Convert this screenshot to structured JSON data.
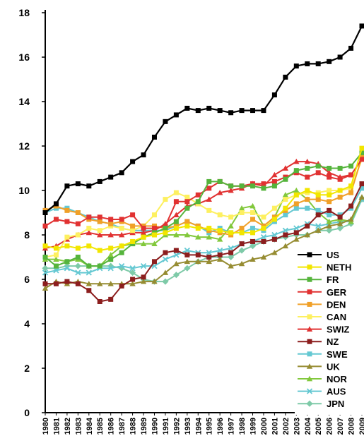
{
  "chart_data": {
    "type": "line",
    "title": "",
    "xlabel": "",
    "ylabel": "",
    "ylim": [
      0,
      18
    ],
    "yticks": [
      0,
      2,
      4,
      6,
      8,
      10,
      12,
      14,
      16,
      18
    ],
    "grid": false,
    "legend_position": "right",
    "categories": [
      "1980",
      "1981",
      "1982",
      "1983",
      "1984",
      "1985",
      "1986",
      "1987",
      "1988",
      "1989",
      "1990",
      "1991",
      "1992",
      "1993",
      "1994",
      "1995",
      "1996",
      "1997",
      "1998",
      "1999",
      "2000",
      "2001",
      "2002",
      "2003",
      "2004",
      "2005",
      "2006",
      "2007",
      "2008",
      "2009"
    ],
    "series": [
      {
        "name": "US",
        "color": "#000000",
        "marker": "square",
        "values": [
          9.0,
          9.4,
          10.2,
          10.3,
          10.2,
          10.4,
          10.6,
          10.8,
          11.3,
          11.6,
          12.4,
          13.1,
          13.4,
          13.7,
          13.6,
          13.7,
          13.6,
          13.5,
          13.6,
          13.6,
          13.6,
          14.3,
          15.1,
          15.6,
          15.7,
          15.7,
          15.8,
          16.0,
          16.4,
          17.4
        ]
      },
      {
        "name": "NETH",
        "color": "#f2e600",
        "marker": "square",
        "values": [
          7.5,
          7.4,
          7.5,
          7.4,
          7.5,
          7.3,
          7.4,
          7.5,
          7.7,
          7.9,
          8.0,
          8.1,
          8.3,
          8.4,
          8.3,
          8.3,
          8.2,
          8.1,
          8.1,
          8.1,
          8.3,
          8.7,
          9.2,
          9.8,
          10.0,
          9.8,
          9.8,
          10.0,
          10.2,
          11.9
        ]
      },
      {
        "name": "FR",
        "color": "#55b43c",
        "marker": "square",
        "values": [
          7.0,
          6.6,
          6.8,
          7.0,
          6.6,
          6.6,
          6.9,
          7.2,
          7.6,
          7.9,
          8.1,
          8.3,
          8.6,
          9.2,
          9.5,
          10.4,
          10.4,
          10.2,
          10.2,
          10.2,
          10.1,
          10.2,
          10.5,
          10.9,
          11.0,
          11.1,
          11.0,
          11.0,
          11.1,
          11.7
        ]
      },
      {
        "name": "GER",
        "color": "#e13232",
        "marker": "square",
        "values": [
          8.4,
          8.7,
          8.6,
          8.5,
          8.8,
          8.8,
          8.7,
          8.7,
          8.9,
          8.3,
          8.3,
          8.4,
          9.5,
          9.5,
          9.8,
          10.1,
          10.4,
          10.2,
          10.2,
          10.3,
          10.3,
          10.4,
          10.6,
          10.8,
          10.6,
          10.8,
          10.6,
          10.5,
          10.7,
          11.4
        ]
      },
      {
        "name": "DEN",
        "color": "#f0a028",
        "marker": "square",
        "values": [
          9.1,
          9.3,
          9.1,
          9.0,
          8.7,
          8.6,
          8.5,
          8.6,
          8.4,
          8.4,
          8.4,
          8.3,
          8.4,
          8.6,
          8.4,
          8.2,
          8.1,
          8.0,
          8.3,
          8.7,
          8.4,
          8.8,
          9.1,
          9.4,
          9.6,
          9.6,
          9.5,
          9.7,
          9.9,
          11.5
        ]
      },
      {
        "name": "CAN",
        "color": "#fdf060",
        "marker": "square",
        "values": [
          7.0,
          7.1,
          7.9,
          8.0,
          8.3,
          8.2,
          8.4,
          8.3,
          8.2,
          8.4,
          8.9,
          9.6,
          9.9,
          9.7,
          9.4,
          9.1,
          8.9,
          8.8,
          9.0,
          9.0,
          8.8,
          9.2,
          9.6,
          9.8,
          9.9,
          9.9,
          10.0,
          10.0,
          10.1,
          11.4
        ]
      },
      {
        "name": "SWIZ",
        "color": "#e13232",
        "marker": "triangle",
        "values": [
          7.4,
          7.5,
          7.8,
          8.0,
          8.1,
          8.0,
          8.0,
          8.0,
          8.1,
          8.1,
          8.2,
          8.5,
          8.9,
          9.3,
          9.4,
          9.6,
          9.9,
          10.0,
          10.1,
          10.3,
          10.2,
          10.7,
          11.0,
          11.3,
          11.3,
          11.2,
          10.8,
          10.6,
          10.7,
          11.4
        ]
      },
      {
        "name": "NZ",
        "color": "#8c1e1e",
        "marker": "square",
        "values": [
          5.8,
          5.8,
          5.9,
          5.8,
          5.5,
          5.0,
          5.1,
          5.7,
          6.0,
          6.1,
          6.8,
          7.2,
          7.3,
          7.1,
          7.1,
          7.0,
          7.1,
          7.2,
          7.6,
          7.7,
          7.7,
          7.8,
          8.0,
          8.1,
          8.4,
          8.9,
          9.1,
          8.8,
          9.3,
          10.3
        ]
      },
      {
        "name": "SWE",
        "color": "#64c8d2",
        "marker": "square",
        "values": [
          9.0,
          9.2,
          9.2,
          9.0,
          8.8,
          8.6,
          8.5,
          8.3,
          8.2,
          8.2,
          8.2,
          8.2,
          8.4,
          8.6,
          8.4,
          8.1,
          8.3,
          8.1,
          8.1,
          8.3,
          8.2,
          8.6,
          8.9,
          9.2,
          9.2,
          9.1,
          8.9,
          8.9,
          9.2,
          10.1
        ]
      },
      {
        "name": "UK",
        "color": "#968c32",
        "marker": "triangle",
        "values": [
          5.6,
          5.9,
          5.8,
          5.9,
          5.8,
          5.8,
          5.8,
          5.8,
          5.8,
          5.9,
          5.9,
          6.3,
          6.7,
          6.8,
          6.8,
          6.8,
          6.9,
          6.6,
          6.7,
          6.9,
          7.0,
          7.2,
          7.5,
          7.8,
          8.0,
          8.2,
          8.4,
          8.5,
          8.7,
          9.7
        ]
      },
      {
        "name": "NOR",
        "color": "#82c83c",
        "marker": "triangle",
        "values": [
          6.9,
          6.9,
          6.8,
          6.9,
          6.6,
          6.6,
          7.1,
          7.5,
          7.6,
          7.6,
          7.6,
          8.0,
          8.0,
          8.0,
          7.9,
          7.9,
          7.8,
          8.4,
          9.2,
          9.3,
          8.4,
          8.8,
          9.8,
          10.0,
          9.6,
          9.0,
          8.6,
          8.7,
          8.6,
          9.7
        ]
      },
      {
        "name": "AUS",
        "color": "#64c8d2",
        "marker": "x",
        "values": [
          6.3,
          6.4,
          6.5,
          6.3,
          6.3,
          6.5,
          6.5,
          6.6,
          6.5,
          6.6,
          6.6,
          6.9,
          7.1,
          7.3,
          7.2,
          7.2,
          7.3,
          7.4,
          7.6,
          7.7,
          7.9,
          8.0,
          8.2,
          8.3,
          8.5,
          8.4,
          8.5,
          8.6,
          8.6,
          9.6
        ]
      },
      {
        "name": "JPN",
        "color": "#7ecaa8",
        "marker": "diamond",
        "values": [
          6.5,
          6.5,
          6.6,
          6.6,
          6.6,
          6.6,
          6.6,
          6.5,
          6.3,
          6.0,
          5.9,
          5.9,
          6.2,
          6.5,
          6.8,
          7.0,
          7.0,
          7.0,
          7.3,
          7.5,
          7.7,
          7.8,
          7.9,
          8.0,
          8.0,
          8.2,
          8.2,
          8.3,
          8.5,
          9.6
        ]
      }
    ]
  }
}
